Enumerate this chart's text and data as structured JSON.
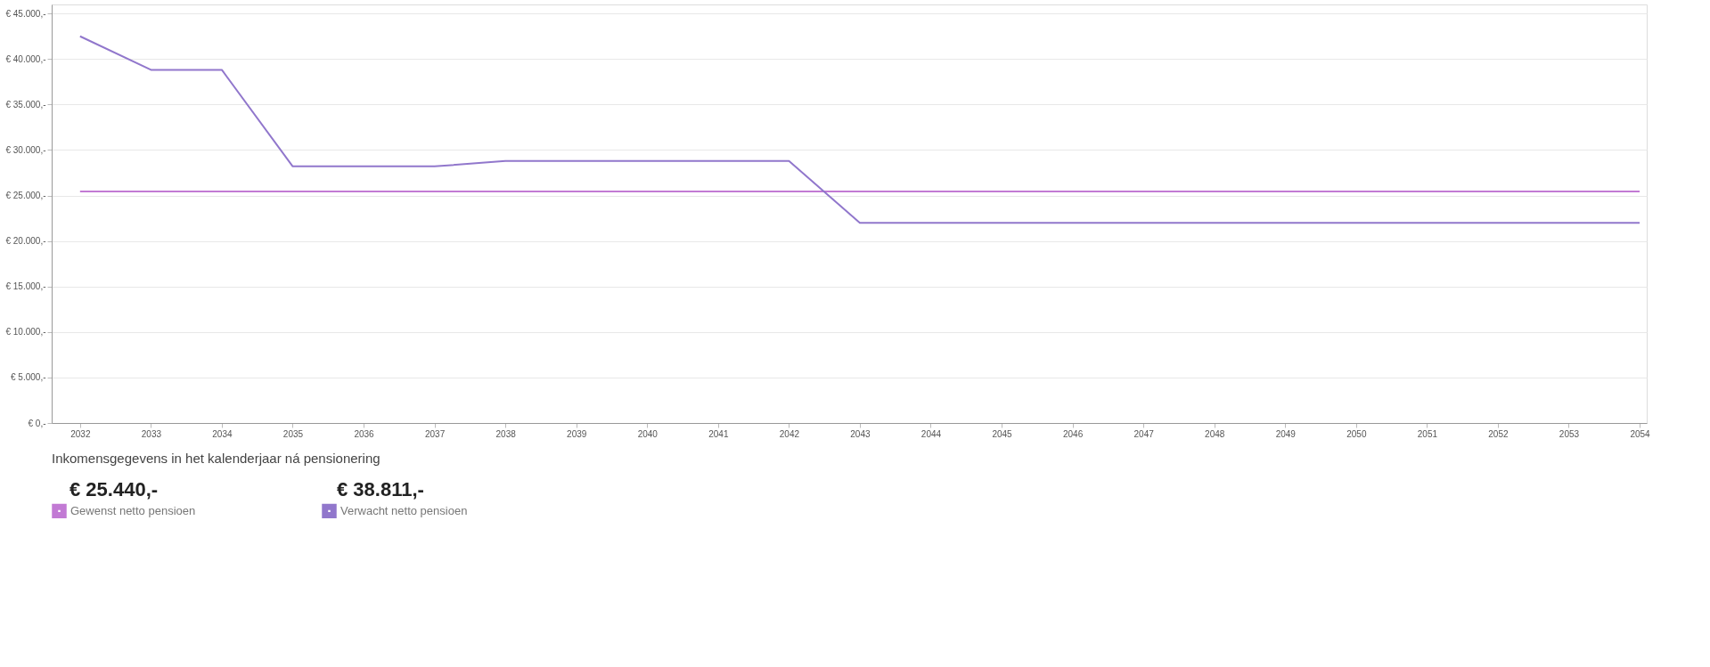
{
  "chart_data": {
    "type": "line",
    "categories": [
      "2032",
      "2033",
      "2034",
      "2035",
      "2036",
      "2037",
      "2038",
      "2039",
      "2040",
      "2041",
      "2042",
      "2043",
      "2044",
      "2045",
      "2046",
      "2047",
      "2048",
      "2049",
      "2050",
      "2051",
      "2052",
      "2053",
      "2054"
    ],
    "series": [
      {
        "name": "Gewenst netto pensioen",
        "color": "#c27ad4",
        "values": [
          25440,
          25440,
          25440,
          25440,
          25440,
          25440,
          25440,
          25440,
          25440,
          25440,
          25440,
          25440,
          25440,
          25440,
          25440,
          25440,
          25440,
          25440,
          25440,
          25440,
          25440,
          25440,
          25440
        ]
      },
      {
        "name": "Verwacht netto pensioen",
        "color": "#9177cc",
        "values": [
          42500,
          38811,
          38811,
          28200,
          28200,
          28200,
          28800,
          28800,
          28800,
          28800,
          28800,
          22000,
          22000,
          22000,
          22000,
          22000,
          22000,
          22000,
          22000,
          22000,
          22000,
          22000,
          22000
        ]
      }
    ],
    "ylim": [
      0,
      46000
    ],
    "yticks": [
      {
        "value": 0,
        "label": "€ 0,-"
      },
      {
        "value": 5000,
        "label": "€ 5.000,-"
      },
      {
        "value": 10000,
        "label": "€ 10.000,-"
      },
      {
        "value": 15000,
        "label": "€ 15.000,-"
      },
      {
        "value": 20000,
        "label": "€ 20.000,-"
      },
      {
        "value": 25000,
        "label": "€ 25.000,-"
      },
      {
        "value": 30000,
        "label": "€ 30.000,-"
      },
      {
        "value": 35000,
        "label": "€ 35.000,-"
      },
      {
        "value": 40000,
        "label": "€ 40.000,-"
      },
      {
        "value": 45000,
        "label": "€ 45.000,-"
      }
    ],
    "grid": "y",
    "legend": "bottom",
    "marker": "none",
    "line_style": "solid",
    "annotations": [
      "Inkomensgegevens in het kalenderjaar ná pensionering",
      "€ 25.440,-",
      "€ 38.811,-"
    ]
  }
}
